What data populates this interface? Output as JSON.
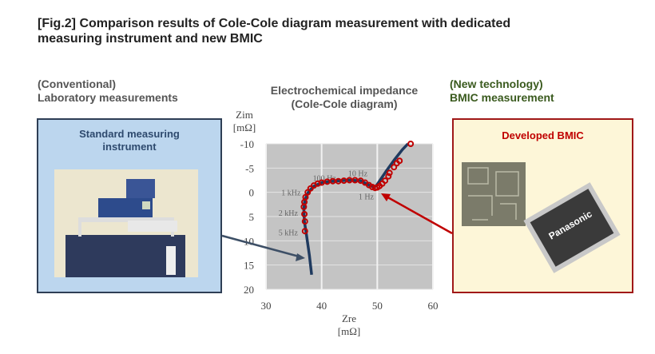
{
  "title_line1": "[Fig.2] Comparison results of Cole-Cole diagram measurement with dedicated",
  "title_line2": "measuring instrument and new BMIC",
  "left": {
    "caption1": "(Conventional)",
    "caption2": "Laboratory measurements",
    "box_label1": "Standard measuring",
    "box_label2": "instrument"
  },
  "right": {
    "caption1": "(New technology)",
    "caption2": "BMIC measurement",
    "box_label": "Developed BMIC",
    "chip_brand": "Panasonic"
  },
  "colors": {
    "blue": "#1f3a5f",
    "red": "#c00000",
    "green": "#3a5a1e",
    "left_fill": "#bcd6ee",
    "right_fill": "#fdf6d8"
  },
  "chart_data": {
    "type": "line",
    "title": "Electrochemical impedance",
    "subtitle": "(Cole-Cole diagram)",
    "xlabel": "Zre",
    "xunit": "[mΩ]",
    "ylabel": "Zim",
    "yunit": "[mΩ]",
    "xlim": [
      30,
      60
    ],
    "ylim": [
      -10,
      20
    ],
    "y_inverted": true,
    "xticks": [
      "30",
      "40",
      "50",
      "60"
    ],
    "yticks": [
      "-10",
      "-5",
      "0",
      "5",
      "10",
      "15",
      "20"
    ],
    "grid": true,
    "series": [
      {
        "name": "Standard measuring instrument",
        "style": "line",
        "x": [
          38.2,
          37.8,
          37.3,
          36.9,
          36.8,
          37.0,
          37.6,
          38.5,
          40,
          42,
          45,
          47,
          48.3,
          49.3,
          49.8,
          50.5,
          51.5,
          53,
          54.5,
          55.5
        ],
        "y": [
          17,
          13,
          9,
          6,
          3.5,
          1.5,
          0,
          -1.2,
          -2,
          -2.3,
          -2.5,
          -2.4,
          -1.6,
          -1.1,
          -1.3,
          -2.5,
          -4.2,
          -6.6,
          -8.8,
          -10
        ]
      },
      {
        "name": "BMIC",
        "style": "markers",
        "x": [
          37,
          37,
          36.9,
          36.8,
          36.9,
          37.1,
          37.5,
          38,
          38.6,
          39.3,
          40,
          41,
          42,
          43,
          44,
          45,
          46,
          47,
          47.8,
          48.5,
          49.1,
          49.6,
          50,
          50.4,
          50.9,
          51.4,
          52,
          52.2,
          53,
          53.5,
          54,
          56
        ],
        "y": [
          8,
          6,
          4.5,
          3,
          2,
          1,
          0,
          -0.8,
          -1.4,
          -1.8,
          -2,
          -2.2,
          -2.3,
          -2.3,
          -2.4,
          -2.5,
          -2.5,
          -2.4,
          -2,
          -1.5,
          -1.1,
          -0.9,
          -1,
          -1.3,
          -1.8,
          -2.4,
          -3.3,
          -4,
          -5.2,
          -6,
          -6.5,
          -10
        ]
      }
    ],
    "annotations": [
      {
        "text": "100 Hz",
        "x": 40.5,
        "y": -3
      },
      {
        "text": "10 Hz",
        "x": 46.5,
        "y": -4
      },
      {
        "text": "1 kHz",
        "x": 34.5,
        "y": 0
      },
      {
        "text": "1 Hz",
        "x": 48,
        "y": 0.8
      },
      {
        "text": "2 kHz",
        "x": 34,
        "y": 4.2
      },
      {
        "text": "5 kHz",
        "x": 34,
        "y": 8.2
      }
    ]
  }
}
